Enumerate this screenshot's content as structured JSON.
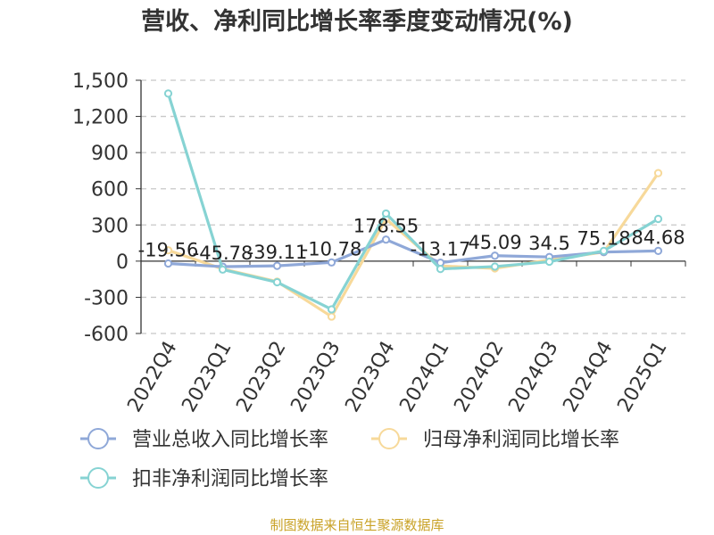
{
  "chart_data": {
    "type": "line",
    "title": "营收、净利同比增长率季度变动情况(%)",
    "xlabel": "",
    "ylabel": "",
    "categories": [
      "2022Q4",
      "2023Q1",
      "2023Q2",
      "2023Q3",
      "2023Q4",
      "2024Q1",
      "2024Q2",
      "2024Q3",
      "2024Q4",
      "2025Q1"
    ],
    "ylim": [
      -600,
      1500
    ],
    "yticks": [
      "1,500",
      "1,200",
      "900",
      "600",
      "300",
      "0",
      "-300",
      "-600"
    ],
    "grid": true,
    "legend_position": "bottom",
    "series": [
      {
        "name": "营业总收入同比增长率",
        "color": "#8fa8d8",
        "values": [
          -19.56,
          -45.78,
          -39.11,
          -10.78,
          178.55,
          -13.17,
          45.09,
          34.5,
          75.18,
          84.68
        ],
        "labels": [
          "-19.56",
          "-45.78",
          "-39.11",
          "-10.78",
          "178.55",
          "-13.17",
          "45.09",
          "34.5",
          "75.18",
          "84.68"
        ]
      },
      {
        "name": "归母净利润同比增长率",
        "color": "#f7d99a",
        "values": [
          90,
          -65,
          -170,
          -460,
          350,
          -40,
          -60,
          10,
          75,
          730
        ]
      },
      {
        "name": "扣非净利润同比增长率",
        "color": "#86d3d3",
        "values": [
          1390,
          -70,
          -175,
          -400,
          395,
          -65,
          -45,
          -5,
          85,
          350
        ]
      }
    ]
  },
  "footer": {
    "source": "制图数据来自恒生聚源数据库"
  }
}
